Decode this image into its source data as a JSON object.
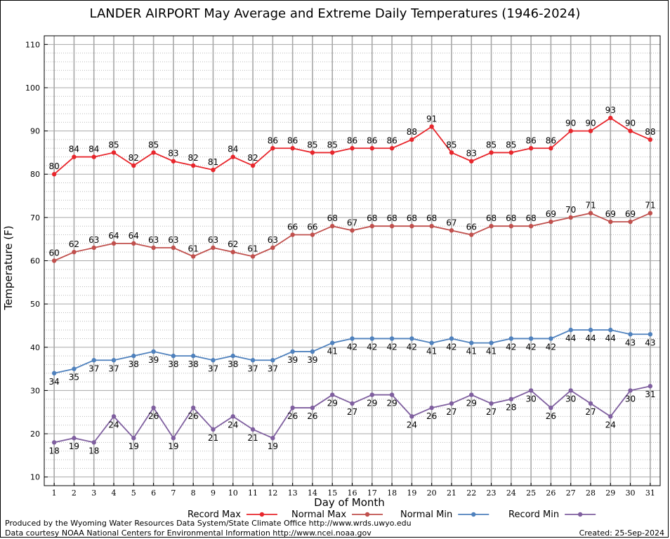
{
  "chart_data": {
    "type": "line",
    "title": "LANDER AIRPORT May Average and Extreme Daily Temperatures (1946-2024)",
    "xlabel": "Day of Month",
    "ylabel": "Temperature (F)",
    "xlim": [
      0.5,
      31.5
    ],
    "ylim": [
      8,
      112
    ],
    "x_ticks": [
      1,
      2,
      3,
      4,
      5,
      6,
      7,
      8,
      9,
      10,
      11,
      12,
      13,
      14,
      15,
      16,
      17,
      18,
      19,
      20,
      21,
      22,
      23,
      24,
      25,
      26,
      27,
      28,
      29,
      30,
      31
    ],
    "y_ticks": [
      10,
      20,
      30,
      40,
      50,
      60,
      70,
      80,
      90,
      100,
      110
    ],
    "grid": true,
    "legend_position": "bottom",
    "series": [
      {
        "name": "Record Max",
        "color": "#e8262c",
        "label_position": "above",
        "values": [
          80,
          84,
          84,
          85,
          82,
          85,
          83,
          82,
          81,
          84,
          82,
          86,
          86,
          85,
          85,
          86,
          86,
          86,
          88,
          91,
          85,
          83,
          85,
          85,
          86,
          86,
          90,
          90,
          93,
          90,
          88
        ]
      },
      {
        "name": "Normal Max",
        "color": "#c0504d",
        "label_position": "above",
        "values": [
          60,
          62,
          63,
          64,
          64,
          63,
          63,
          61,
          63,
          62,
          61,
          63,
          66,
          66,
          68,
          67,
          68,
          68,
          68,
          68,
          67,
          66,
          68,
          68,
          68,
          69,
          70,
          71,
          69,
          69,
          71
        ]
      },
      {
        "name": "Normal Min",
        "color": "#4f81bd",
        "label_position": "below",
        "values": [
          34,
          35,
          37,
          37,
          38,
          39,
          38,
          38,
          37,
          38,
          37,
          37,
          39,
          39,
          41,
          42,
          42,
          42,
          42,
          41,
          42,
          41,
          41,
          42,
          42,
          42,
          44,
          44,
          44,
          43,
          43
        ]
      },
      {
        "name": "Record Min",
        "color": "#7f5f9f",
        "label_position": "below",
        "values": [
          18,
          19,
          18,
          24,
          19,
          26,
          19,
          26,
          21,
          24,
          21,
          19,
          26,
          26,
          29,
          27,
          29,
          29,
          24,
          26,
          27,
          29,
          27,
          28,
          30,
          26,
          30,
          27,
          24,
          30,
          31
        ]
      }
    ]
  },
  "footer": {
    "produced_by": "Produced by the Wyoming Water Resources Data System/State Climate Office http://www.wrds.uwyo.edu",
    "data_courtesy": "Data courtesy NOAA National Centers for Environmental Information http://www.ncei.noaa.gov",
    "created": "Created:  25-Sep-2024"
  }
}
